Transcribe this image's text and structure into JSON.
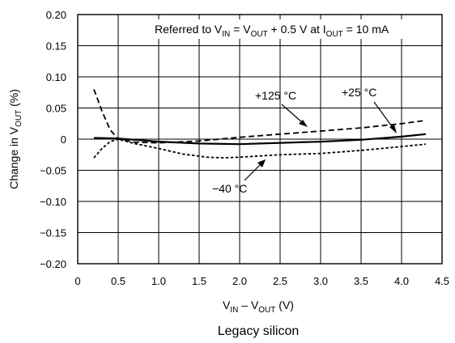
{
  "chart_data": {
    "type": "line",
    "xlabel": {
      "main": "V",
      "sub1": "IN",
      "mid": " – V",
      "sub2": "OUT",
      "tail": " (V)"
    },
    "ylabel": {
      "main": "Change in V",
      "sub": "OUT",
      "tail": " (%)"
    },
    "caption": "Legacy silicon",
    "annotation": {
      "prefix": "Referred to V",
      "s1": "IN",
      "t1": " = V",
      "s2": "OUT",
      "t2": " + 0.5 V at I",
      "s3": "OUT",
      "t3": " = 10 mA"
    },
    "xlim": [
      0,
      4.5
    ],
    "ylim": [
      -0.2,
      0.2
    ],
    "xticks": [
      "0",
      "0.5",
      "1.0",
      "1.5",
      "2.0",
      "2.5",
      "3.0",
      "3.5",
      "4.0",
      "4.5"
    ],
    "yticks": [
      "0.20",
      "0.15",
      "0.10",
      "0.05",
      "0",
      "−0.05",
      "−0.10",
      "−0.15",
      "−0.20"
    ],
    "grid": true,
    "series": [
      {
        "name": "+125 °C",
        "style": "dashed",
        "points": [
          [
            0.2,
            0.08
          ],
          [
            0.3,
            0.045
          ],
          [
            0.4,
            0.015
          ],
          [
            0.5,
            0
          ],
          [
            0.7,
            -0.005
          ],
          [
            1.0,
            -0.006
          ],
          [
            1.5,
            -0.003
          ],
          [
            2.0,
            0.003
          ],
          [
            2.5,
            0.008
          ],
          [
            3.0,
            0.013
          ],
          [
            3.5,
            0.018
          ],
          [
            4.0,
            0.025
          ],
          [
            4.3,
            0.03
          ]
        ]
      },
      {
        "name": "+25 °C",
        "style": "solid",
        "points": [
          [
            0.2,
            0.002
          ],
          [
            0.5,
            0.001
          ],
          [
            1.0,
            -0.004
          ],
          [
            1.5,
            -0.007
          ],
          [
            2.0,
            -0.008
          ],
          [
            2.5,
            -0.006
          ],
          [
            3.0,
            -0.004
          ],
          [
            3.5,
            -0.001
          ],
          [
            4.0,
            0.004
          ],
          [
            4.3,
            0.008
          ]
        ]
      },
      {
        "name": "−40 °C",
        "style": "dotted",
        "points": [
          [
            0.2,
            -0.03
          ],
          [
            0.3,
            -0.015
          ],
          [
            0.4,
            -0.004
          ],
          [
            0.5,
            0
          ],
          [
            0.7,
            -0.007
          ],
          [
            1.0,
            -0.015
          ],
          [
            1.3,
            -0.024
          ],
          [
            1.6,
            -0.029
          ],
          [
            1.8,
            -0.03
          ],
          [
            2.0,
            -0.029
          ],
          [
            2.5,
            -0.025
          ],
          [
            3.0,
            -0.023
          ],
          [
            3.5,
            -0.018
          ],
          [
            4.0,
            -0.012
          ],
          [
            4.3,
            -0.008
          ]
        ]
      }
    ],
    "labels": [
      {
        "series": 0,
        "text": "+125 °C"
      },
      {
        "series": 1,
        "text": "+25 °C"
      },
      {
        "series": 2,
        "text": "−40 °C"
      }
    ]
  }
}
